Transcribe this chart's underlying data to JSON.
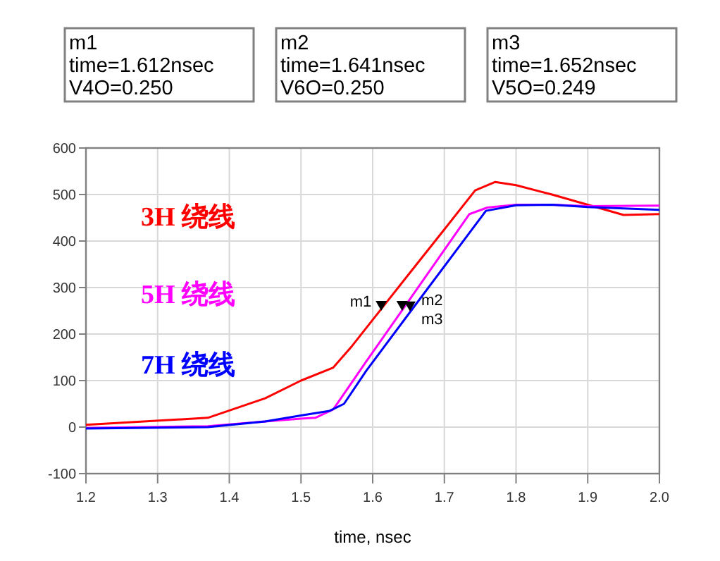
{
  "chart_data": {
    "type": "line",
    "xlabel": "time, nsec",
    "series": [
      {
        "name": "3H 绕线",
        "color": "#ff0000",
        "x": [
          1.2,
          1.37,
          1.45,
          1.5,
          1.545,
          1.571,
          1.612,
          1.65,
          1.7,
          1.743,
          1.771,
          1.8,
          1.85,
          1.9,
          1.95,
          2.0
        ],
        "values": [
          5,
          20,
          62,
          100,
          128,
          174,
          254,
          328,
          425,
          509,
          527,
          520,
          500,
          478,
          456,
          458
        ]
      },
      {
        "name": "5H 绕线",
        "color": "#ff00ff",
        "x": [
          1.2,
          1.37,
          1.45,
          1.5,
          1.52,
          1.545,
          1.591,
          1.641,
          1.735,
          1.76,
          1.8,
          1.85,
          1.9,
          2.0
        ],
        "values": [
          -2,
          2,
          12,
          18,
          20,
          38,
          141,
          251,
          458,
          472,
          478,
          478,
          475,
          476
        ]
      },
      {
        "name": "7H 绕线",
        "color": "#0000ff",
        "x": [
          1.2,
          1.37,
          1.45,
          1.5,
          1.54,
          1.56,
          1.591,
          1.652,
          1.758,
          1.8,
          1.85,
          1.9,
          2.0
        ],
        "values": [
          -3,
          0,
          12,
          25,
          35,
          50,
          121,
          247,
          465,
          477,
          478,
          473,
          467
        ]
      }
    ],
    "xlim": [
      1.2,
      2.0
    ],
    "xticks": [
      1.2,
      1.3,
      1.4,
      1.5,
      1.6,
      1.7,
      1.8,
      1.9,
      {
        "value": 2.0,
        "label": "2.0"
      }
    ],
    "ylim": [
      -100,
      600
    ],
    "yticks": [
      -100,
      0,
      100,
      200,
      300,
      400,
      500,
      600
    ],
    "grid": true,
    "marker": "none",
    "line_style": "solid",
    "annotations": [
      "m1\ntime=1.612nsec\nV4O=0.250",
      "m2\ntime=1.641nsec\nV6O=0.250",
      "m3\ntime=1.652nsec\nV5O=0.249",
      {
        "text": "m1",
        "x": 1.612,
        "y": 250
      },
      {
        "text": "m2",
        "x": 1.641,
        "y": 250
      },
      {
        "text": "m3",
        "x": 1.652,
        "y": 249
      }
    ]
  }
}
